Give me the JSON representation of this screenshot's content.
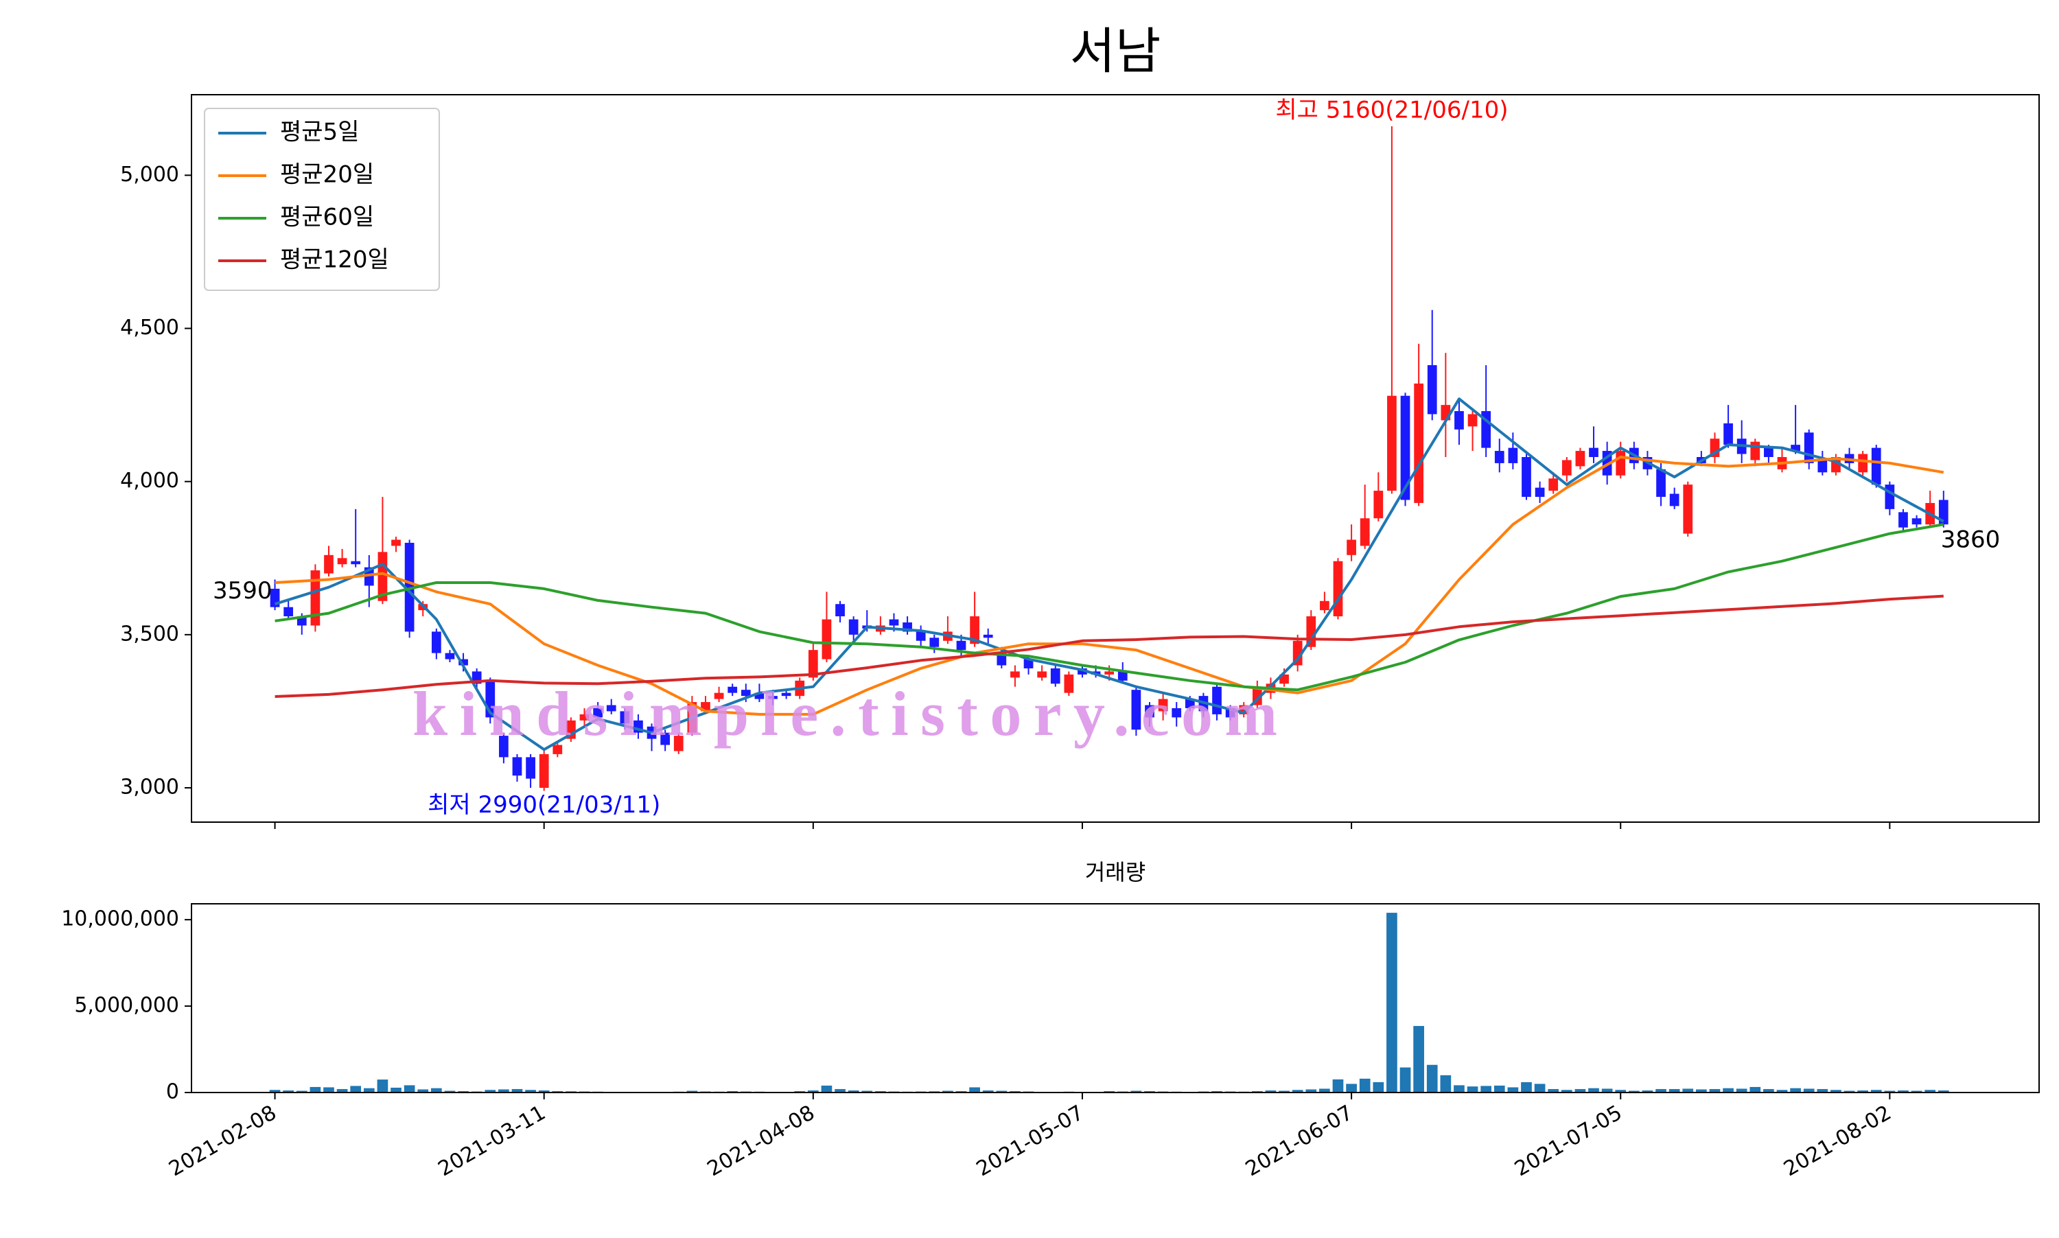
{
  "chart_data": {
    "type": "candlestick",
    "title": "서남",
    "categories": [
      "2021-02-08",
      "2021-02-09",
      "2021-02-10",
      "2021-02-15",
      "2021-02-16",
      "2021-02-17",
      "2021-02-18",
      "2021-02-19",
      "2021-02-22",
      "2021-02-23",
      "2021-02-24",
      "2021-02-25",
      "2021-02-26",
      "2021-03-02",
      "2021-03-03",
      "2021-03-04",
      "2021-03-05",
      "2021-03-08",
      "2021-03-09",
      "2021-03-10",
      "2021-03-11",
      "2021-03-12",
      "2021-03-15",
      "2021-03-16",
      "2021-03-17",
      "2021-03-18",
      "2021-03-19",
      "2021-03-22",
      "2021-03-23",
      "2021-03-24",
      "2021-03-25",
      "2021-03-26",
      "2021-03-29",
      "2021-03-30",
      "2021-03-31",
      "2021-04-01",
      "2021-04-02",
      "2021-04-05",
      "2021-04-06",
      "2021-04-07",
      "2021-04-08",
      "2021-04-09",
      "2021-04-12",
      "2021-04-13",
      "2021-04-14",
      "2021-04-15",
      "2021-04-16",
      "2021-04-19",
      "2021-04-20",
      "2021-04-21",
      "2021-04-22",
      "2021-04-23",
      "2021-04-26",
      "2021-04-27",
      "2021-04-28",
      "2021-04-29",
      "2021-04-30",
      "2021-05-03",
      "2021-05-04",
      "2021-05-06",
      "2021-05-07",
      "2021-05-10",
      "2021-05-11",
      "2021-05-12",
      "2021-05-13",
      "2021-05-14",
      "2021-05-17",
      "2021-05-18",
      "2021-05-20",
      "2021-05-21",
      "2021-05-24",
      "2021-05-25",
      "2021-05-26",
      "2021-05-27",
      "2021-05-28",
      "2021-05-31",
      "2021-06-01",
      "2021-06-02",
      "2021-06-03",
      "2021-06-04",
      "2021-06-07",
      "2021-06-08",
      "2021-06-09",
      "2021-06-10",
      "2021-06-11",
      "2021-06-14",
      "2021-06-15",
      "2021-06-16",
      "2021-06-17",
      "2021-06-18",
      "2021-06-21",
      "2021-06-22",
      "2021-06-23",
      "2021-06-24",
      "2021-06-25",
      "2021-06-28",
      "2021-06-29",
      "2021-06-30",
      "2021-07-01",
      "2021-07-02",
      "2021-07-05",
      "2021-07-06",
      "2021-07-07",
      "2021-07-08",
      "2021-07-09",
      "2021-07-12",
      "2021-07-13",
      "2021-07-14",
      "2021-07-15",
      "2021-07-16",
      "2021-07-19",
      "2021-07-20",
      "2021-07-21",
      "2021-07-22",
      "2021-07-23",
      "2021-07-26",
      "2021-07-27",
      "2021-07-28",
      "2021-07-29",
      "2021-07-30",
      "2021-08-02",
      "2021-08-03",
      "2021-08-04",
      "2021-08-05",
      "2021-08-06"
    ],
    "open": [
      3650,
      3590,
      3560,
      3530,
      3700,
      3730,
      3740,
      3720,
      3610,
      3790,
      3800,
      3580,
      3510,
      3440,
      3420,
      3380,
      3350,
      3170,
      3100,
      3100,
      3000,
      3110,
      3160,
      3220,
      3260,
      3270,
      3250,
      3220,
      3200,
      3180,
      3120,
      3180,
      3250,
      3290,
      3330,
      3320,
      3310,
      3300,
      3310,
      3300,
      3360,
      3420,
      3600,
      3550,
      3530,
      3510,
      3550,
      3540,
      3510,
      3490,
      3480,
      3480,
      3470,
      3500,
      3440,
      3360,
      3420,
      3360,
      3390,
      3310,
      3390,
      3380,
      3370,
      3380,
      3320,
      3270,
      3250,
      3260,
      3290,
      3300,
      3330,
      3260,
      3240,
      3270,
      3310,
      3340,
      3400,
      3460,
      3580,
      3560,
      3760,
      3790,
      3880,
      3970,
      4280,
      3930,
      4380,
      4200,
      4230,
      4180,
      4230,
      4100,
      4110,
      4080,
      3980,
      3970,
      4020,
      4050,
      4110,
      4100,
      4020,
      4110,
      4080,
      4040,
      3960,
      3830,
      4080,
      4080,
      4190,
      4140,
      4070,
      4110,
      4040,
      4120,
      4160,
      4070,
      4030,
      4090,
      4030,
      4110,
      3990,
      3900,
      3880,
      3860,
      3940
    ],
    "high": [
      3680,
      3610,
      3570,
      3730,
      3790,
      3780,
      3910,
      3760,
      3950,
      3820,
      3810,
      3610,
      3520,
      3450,
      3440,
      3390,
      3360,
      3180,
      3110,
      3110,
      3130,
      3150,
      3230,
      3260,
      3280,
      3290,
      3260,
      3240,
      3210,
      3190,
      3180,
      3300,
      3300,
      3330,
      3340,
      3340,
      3340,
      3320,
      3320,
      3360,
      3470,
      3640,
      3610,
      3560,
      3580,
      3560,
      3570,
      3560,
      3530,
      3500,
      3560,
      3500,
      3640,
      3520,
      3460,
      3400,
      3430,
      3400,
      3400,
      3380,
      3400,
      3400,
      3400,
      3410,
      3330,
      3280,
      3310,
      3280,
      3300,
      3310,
      3340,
      3270,
      3280,
      3350,
      3360,
      3390,
      3500,
      3580,
      3640,
      3750,
      3860,
      3990,
      4030,
      5160,
      4290,
      4450,
      4560,
      4420,
      4270,
      4240,
      4380,
      4140,
      4160,
      4090,
      4000,
      4030,
      4080,
      4110,
      4180,
      4130,
      4130,
      4130,
      4100,
      4060,
      3980,
      4000,
      4100,
      4160,
      4250,
      4200,
      4140,
      4120,
      4110,
      4250,
      4170,
      4100,
      4090,
      4110,
      4100,
      4120,
      4000,
      3910,
      3890,
      3970,
      3970
    ],
    "low": [
      3580,
      3550,
      3500,
      3510,
      3690,
      3720,
      3720,
      3590,
      3600,
      3770,
      3490,
      3560,
      3420,
      3410,
      3380,
      3320,
      3210,
      3080,
      3020,
      3000,
      2990,
      3100,
      3150,
      3200,
      3220,
      3240,
      3190,
      3160,
      3120,
      3120,
      3110,
      3170,
      3240,
      3280,
      3300,
      3280,
      3280,
      3270,
      3290,
      3290,
      3350,
      3410,
      3540,
      3480,
      3510,
      3500,
      3510,
      3500,
      3460,
      3440,
      3470,
      3430,
      3460,
      3470,
      3390,
      3330,
      3370,
      3350,
      3330,
      3300,
      3360,
      3360,
      3350,
      3340,
      3170,
      3200,
      3220,
      3200,
      3250,
      3230,
      3220,
      3220,
      3230,
      3260,
      3290,
      3330,
      3380,
      3450,
      3570,
      3550,
      3740,
      3780,
      3870,
      3960,
      3920,
      3920,
      4200,
      4080,
      4120,
      4100,
      4080,
      4030,
      4040,
      3940,
      3930,
      3960,
      4000,
      4040,
      4060,
      3990,
      4010,
      4040,
      4020,
      3920,
      3910,
      3820,
      4050,
      4060,
      4110,
      4060,
      4050,
      4060,
      4030,
      4090,
      4040,
      4020,
      4020,
      4040,
      4020,
      3980,
      3890,
      3840,
      3850,
      3850,
      3850
    ],
    "close": [
      3590,
      3560,
      3530,
      3710,
      3760,
      3750,
      3730,
      3660,
      3770,
      3810,
      3510,
      3600,
      3440,
      3420,
      3400,
      3340,
      3230,
      3100,
      3040,
      3030,
      3110,
      3140,
      3220,
      3240,
      3230,
      3250,
      3210,
      3180,
      3160,
      3140,
      3170,
      3280,
      3280,
      3310,
      3310,
      3300,
      3290,
      3290,
      3300,
      3350,
      3450,
      3550,
      3560,
      3500,
      3520,
      3530,
      3530,
      3510,
      3480,
      3460,
      3510,
      3450,
      3560,
      3490,
      3400,
      3380,
      3390,
      3380,
      3340,
      3370,
      3370,
      3370,
      3380,
      3350,
      3190,
      3230,
      3290,
      3230,
      3260,
      3250,
      3240,
      3230,
      3270,
      3330,
      3340,
      3370,
      3480,
      3560,
      3610,
      3740,
      3810,
      3880,
      3970,
      4280,
      3940,
      4320,
      4220,
      4250,
      4170,
      4220,
      4110,
      4060,
      4060,
      3950,
      3950,
      4010,
      4070,
      4100,
      4080,
      4020,
      4100,
      4060,
      4040,
      3950,
      3920,
      3990,
      4060,
      4140,
      4120,
      4090,
      4130,
      4080,
      4080,
      4100,
      4060,
      4030,
      4080,
      4060,
      4090,
      3990,
      3910,
      3850,
      3860,
      3930,
      3860
    ],
    "up_color": "#ff1a1a",
    "down_color": "#1a1aff",
    "series": [
      {
        "name": "평균5일",
        "color": "#1f77b4",
        "x": [
          "2021-02-08",
          "2021-02-16",
          "2021-02-22",
          "2021-02-26",
          "2021-03-05",
          "2021-03-11",
          "2021-03-17",
          "2021-03-23",
          "2021-03-29",
          "2021-04-02",
          "2021-04-08",
          "2021-04-14",
          "2021-04-20",
          "2021-04-26",
          "2021-04-30",
          "2021-05-07",
          "2021-05-13",
          "2021-05-20",
          "2021-05-26",
          "2021-06-01",
          "2021-06-07",
          "2021-06-11",
          "2021-06-17",
          "2021-06-23",
          "2021-06-29",
          "2021-07-05",
          "2021-07-09",
          "2021-07-15",
          "2021-07-21",
          "2021-07-27",
          "2021-08-02",
          "2021-08-06"
        ],
        "values": [
          3600,
          3655,
          3730,
          3550,
          3245,
          3125,
          3225,
          3180,
          3245,
          3310,
          3330,
          3525,
          3513,
          3483,
          3420,
          3385,
          3330,
          3290,
          3245,
          3420,
          3680,
          3980,
          4270,
          4130,
          3990,
          4110,
          4015,
          4120,
          4110,
          4065,
          3965,
          3870
        ]
      },
      {
        "name": "평균20일",
        "color": "#ff7f0e",
        "x": [
          "2021-02-08",
          "2021-02-16",
          "2021-02-22",
          "2021-02-26",
          "2021-03-05",
          "2021-03-11",
          "2021-03-17",
          "2021-03-23",
          "2021-03-29",
          "2021-04-02",
          "2021-04-08",
          "2021-04-14",
          "2021-04-20",
          "2021-04-26",
          "2021-04-30",
          "2021-05-07",
          "2021-05-13",
          "2021-05-20",
          "2021-05-26",
          "2021-06-01",
          "2021-06-07",
          "2021-06-11",
          "2021-06-17",
          "2021-06-23",
          "2021-06-29",
          "2021-07-05",
          "2021-07-09",
          "2021-07-15",
          "2021-07-21",
          "2021-07-27",
          "2021-08-02",
          "2021-08-06"
        ],
        "values": [
          3670,
          3680,
          3700,
          3640,
          3600,
          3470,
          3400,
          3340,
          3250,
          3240,
          3240,
          3320,
          3390,
          3440,
          3470,
          3470,
          3450,
          3390,
          3330,
          3310,
          3350,
          3470,
          3680,
          3860,
          3980,
          4080,
          4060,
          4050,
          4060,
          4075,
          4060,
          4030
        ]
      },
      {
        "name": "평균60일",
        "color": "#2ca02c",
        "x": [
          "2021-02-08",
          "2021-02-16",
          "2021-02-22",
          "2021-02-26",
          "2021-03-05",
          "2021-03-11",
          "2021-03-17",
          "2021-03-23",
          "2021-03-29",
          "2021-04-02",
          "2021-04-08",
          "2021-04-14",
          "2021-04-20",
          "2021-04-26",
          "2021-04-30",
          "2021-05-07",
          "2021-05-13",
          "2021-05-20",
          "2021-05-26",
          "2021-06-01",
          "2021-06-07",
          "2021-06-11",
          "2021-06-17",
          "2021-06-23",
          "2021-06-29",
          "2021-07-05",
          "2021-07-09",
          "2021-07-15",
          "2021-07-21",
          "2021-07-27",
          "2021-08-02",
          "2021-08-06"
        ],
        "values": [
          3545,
          3570,
          3630,
          3670,
          3670,
          3650,
          3612,
          3590,
          3570,
          3510,
          3474,
          3470,
          3460,
          3440,
          3430,
          3400,
          3375,
          3350,
          3330,
          3320,
          3362,
          3410,
          3483,
          3530,
          3570,
          3625,
          3650,
          3705,
          3740,
          3785,
          3830,
          3860
        ]
      },
      {
        "name": "평균120일",
        "color": "#d62728",
        "x": [
          "2021-02-08",
          "2021-02-16",
          "2021-02-22",
          "2021-02-26",
          "2021-03-05",
          "2021-03-11",
          "2021-03-17",
          "2021-03-23",
          "2021-03-29",
          "2021-04-02",
          "2021-04-08",
          "2021-04-14",
          "2021-04-20",
          "2021-04-26",
          "2021-04-30",
          "2021-05-07",
          "2021-05-13",
          "2021-05-20",
          "2021-05-26",
          "2021-06-01",
          "2021-06-07",
          "2021-06-11",
          "2021-06-17",
          "2021-06-23",
          "2021-06-29",
          "2021-07-05",
          "2021-07-09",
          "2021-07-15",
          "2021-07-21",
          "2021-07-27",
          "2021-08-02",
          "2021-08-06"
        ],
        "values": [
          3298,
          3305,
          3320,
          3338,
          3350,
          3342,
          3340,
          3348,
          3358,
          3362,
          3370,
          3392,
          3416,
          3432,
          3452,
          3480,
          3484,
          3492,
          3494,
          3486,
          3484,
          3500,
          3526,
          3542,
          3552,
          3562,
          3572,
          3582,
          3592,
          3602,
          3616,
          3626
        ]
      }
    ],
    "legend": "upper left",
    "ylim": [
      2888,
      5263
    ],
    "yticks": [
      {
        "value": 3000,
        "label": "3,000"
      },
      {
        "value": 3500,
        "label": "3,500"
      },
      {
        "value": 4000,
        "label": "4,000"
      },
      {
        "value": 4500,
        "label": "4,500"
      },
      {
        "value": 5000,
        "label": "5,000"
      }
    ],
    "xticks": [
      "2021-02-08",
      "2021-03-11",
      "2021-04-08",
      "2021-05-07",
      "2021-06-07",
      "2021-07-05",
      "2021-08-02"
    ],
    "annotations": [
      {
        "text": "최고 5160(21/06/10)",
        "x": "2021-06-10",
        "y": 5160,
        "color": "#ff0000"
      },
      {
        "text": "최저 2990(21/03/11)",
        "x": "2021-03-11",
        "y": 2990,
        "color": "#0000ff"
      },
      {
        "text": "3590",
        "x": "2021-02-08",
        "y": 3590,
        "color": "#000000"
      },
      {
        "text": "3860",
        "x": "2021-08-06",
        "y": 3860,
        "color": "#000000"
      }
    ],
    "watermark": "kindsimple.tistory.com",
    "volume": {
      "title": "거래량",
      "color": "#1f77b4",
      "ylim": [
        0,
        10920000
      ],
      "yticks": [
        0,
        {
          "value": 5000000,
          "label": "5,000,000"
        },
        {
          "value": 10000000,
          "label": "10,000,000"
        }
      ],
      "values": [
        150000,
        120000,
        100000,
        320000,
        300000,
        200000,
        380000,
        250000,
        750000,
        280000,
        420000,
        180000,
        250000,
        100000,
        80000,
        60000,
        150000,
        180000,
        200000,
        150000,
        120000,
        80000,
        70000,
        60000,
        50000,
        40000,
        40000,
        30000,
        40000,
        40000,
        50000,
        100000,
        60000,
        50000,
        80000,
        60000,
        50000,
        40000,
        40000,
        80000,
        120000,
        400000,
        200000,
        120000,
        100000,
        80000,
        60000,
        50000,
        60000,
        70000,
        100000,
        80000,
        300000,
        120000,
        100000,
        80000,
        60000,
        40000,
        40000,
        50000,
        40000,
        40000,
        80000,
        60000,
        100000,
        80000,
        60000,
        50000,
        40000,
        60000,
        80000,
        60000,
        50000,
        80000,
        120000,
        100000,
        150000,
        180000,
        220000,
        760000,
        500000,
        800000,
        600000,
        10400000,
        1450000,
        3850000,
        1600000,
        1000000,
        420000,
        350000,
        380000,
        400000,
        300000,
        600000,
        500000,
        200000,
        150000,
        200000,
        250000,
        220000,
        150000,
        100000,
        120000,
        200000,
        200000,
        220000,
        180000,
        200000,
        250000,
        220000,
        320000,
        200000,
        150000,
        250000,
        220000,
        200000,
        150000,
        100000,
        120000,
        150000,
        100000,
        120000,
        100000,
        150000,
        120000
      ]
    }
  }
}
